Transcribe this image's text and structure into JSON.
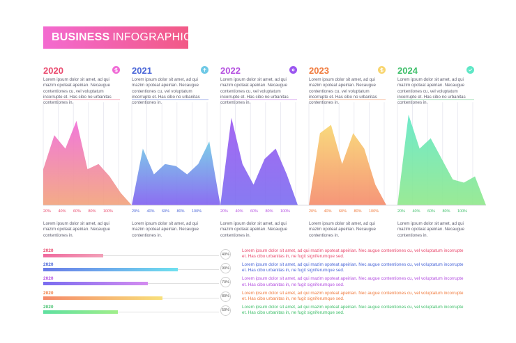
{
  "title": {
    "bold": "BUSINESS",
    "light": "INFOGRAPHIC"
  },
  "lorem_top": "Lorem ipsum dolor sit amet, ad qui mazim opoteat apeirian. Necaugue contentiones cu, vel voluptatum incorrupte et. Has cibo no urbanitas contentiones in.",
  "lorem_bottom": "Lorem ipsum dolor sit amet, ad qui mazim opoteat apeirian. Necaugue contentiones in.",
  "x_ticks": [
    "20%",
    "40%",
    "60%",
    "80%",
    "100%"
  ],
  "colors": {
    "2020": "#e94a6e",
    "2021": "#4a66d8",
    "2022": "#b44fe0",
    "2023": "#f07a3c",
    "2024": "#3fbf6a"
  },
  "icons": [
    "dollar-icon",
    "arrow-up-icon",
    "gear-icon",
    "dollar-icon",
    "check-icon"
  ],
  "chart_data": [
    {
      "type": "area",
      "year": "2020",
      "x": [
        0,
        1,
        2,
        3,
        4,
        5,
        6,
        7,
        8
      ],
      "values": [
        35,
        68,
        55,
        82,
        35,
        40,
        28,
        12,
        0
      ],
      "ylim": [
        0,
        100
      ]
    },
    {
      "type": "area",
      "year": "2021",
      "x": [
        0,
        1,
        2,
        3,
        4,
        5,
        6,
        7,
        8
      ],
      "values": [
        0,
        55,
        30,
        40,
        38,
        30,
        40,
        62,
        0
      ],
      "ylim": [
        0,
        100
      ]
    },
    {
      "type": "area",
      "year": "2022",
      "x": [
        0,
        1,
        2,
        3,
        4,
        5,
        6,
        7,
        8
      ],
      "values": [
        0,
        85,
        40,
        20,
        45,
        55,
        30,
        0,
        0
      ],
      "ylim": [
        0,
        100
      ]
    },
    {
      "type": "area",
      "year": "2023",
      "x": [
        0,
        1,
        2,
        3,
        4,
        5,
        6,
        7,
        8
      ],
      "values": [
        0,
        70,
        78,
        40,
        70,
        55,
        20,
        0,
        0
      ],
      "ylim": [
        0,
        100
      ]
    },
    {
      "type": "area",
      "year": "2024",
      "x": [
        0,
        1,
        2,
        3,
        4,
        5,
        6,
        7,
        8
      ],
      "values": [
        0,
        88,
        55,
        65,
        45,
        25,
        22,
        28,
        0
      ],
      "ylim": [
        0,
        100
      ]
    }
  ],
  "progress": [
    {
      "year": "2020",
      "value": 40,
      "label": "40%",
      "text": "Lorem ipsum dolor sit amet, ad qui mazim opoteat apeirian. Nec augue contentiones cu, vel voluptatum incorrupte et. Has cibo urbanitas in, ne fugit signiferumque sed."
    },
    {
      "year": "2020",
      "value": 90,
      "label": "90%",
      "text": "Lorem ipsum dolor sit amet, ad qui mazim opoteat apeirian. Nec augue contentiones cu, vel voluptatum incorrupte et. Has cibo urbanitas in, ne fugit signiferumque sed."
    },
    {
      "year": "2020",
      "value": 70,
      "label": "70%",
      "text": "Lorem ipsum dolor sit amet, ad qui mazim opoteat apeirian. Nec augue contentiones cu, vel voluptatum incorrupte et. Has cibo urbanitas in, ne fugit signiferumque sed."
    },
    {
      "year": "2020",
      "value": 80,
      "label": "80%",
      "text": "Lorem ipsum dolor sit amet, ad qui mazim opoteat apeirian. Nec augue contentiones cu, vel voluptatum incorrupte et. Has cibo urbanitas in, ne fugit signiferumque sed."
    },
    {
      "year": "2020",
      "value": 50,
      "label": "50%",
      "text": "Lorem ipsum dolor sit amet, ad qui mazim opoteat apeirian. Nec augue contentiones cu, vel voluptatum incorrupte et. Has cibo urbanitas in, ne fugit signiferumque sed."
    }
  ]
}
